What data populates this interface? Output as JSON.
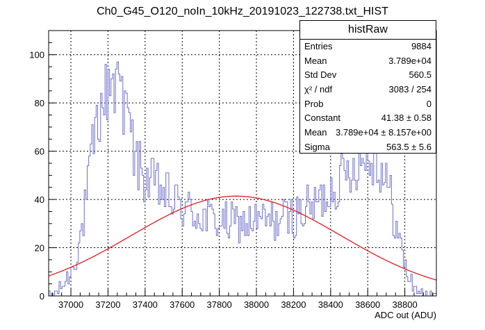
{
  "chart_data": {
    "type": "histogram",
    "title": "Ch0_G45_O120_noIn_10kHz_20191023_122738.txt_HIST",
    "xlabel": "ADC out (ADU)",
    "ylabel": "",
    "xlim": [
      36880,
      38970
    ],
    "ylim": [
      0,
      110
    ],
    "x_ticks": [
      37000,
      37200,
      37400,
      37600,
      37800,
      38000,
      38200,
      38400,
      38600,
      38800
    ],
    "y_ticks": [
      0,
      20,
      40,
      60,
      80,
      100
    ],
    "grid": true,
    "legend": "top-right",
    "colors": {
      "histogram": "#6e6ecc",
      "fit": "#e0191c",
      "axes": "#000000"
    },
    "histogram_profile": [
      [
        36890,
        0
      ],
      [
        36930,
        2
      ],
      [
        36970,
        6
      ],
      [
        37000,
        10
      ],
      [
        37030,
        17
      ],
      [
        37060,
        28
      ],
      [
        37080,
        37
      ],
      [
        37100,
        50
      ],
      [
        37120,
        62
      ],
      [
        37140,
        70
      ],
      [
        37160,
        76
      ],
      [
        37180,
        82
      ],
      [
        37200,
        86
      ],
      [
        37220,
        88
      ],
      [
        37240,
        87
      ],
      [
        37260,
        84
      ],
      [
        37280,
        80
      ],
      [
        37300,
        72
      ],
      [
        37320,
        66
      ],
      [
        37340,
        60
      ],
      [
        37360,
        55
      ],
      [
        37380,
        51
      ],
      [
        37400,
        49
      ],
      [
        37450,
        46
      ],
      [
        37500,
        43
      ],
      [
        37550,
        39
      ],
      [
        37600,
        37
      ],
      [
        37650,
        35
      ],
      [
        37700,
        33
      ],
      [
        37750,
        32
      ],
      [
        37800,
        31
      ],
      [
        37850,
        30
      ],
      [
        37900,
        30
      ],
      [
        37950,
        30
      ],
      [
        38000,
        31
      ],
      [
        38050,
        31
      ],
      [
        38100,
        31
      ],
      [
        38150,
        32
      ],
      [
        38200,
        33
      ],
      [
        38250,
        35
      ],
      [
        38300,
        37
      ],
      [
        38350,
        40
      ],
      [
        38400,
        44
      ],
      [
        38450,
        48
      ],
      [
        38500,
        52
      ],
      [
        38550,
        56
      ],
      [
        38600,
        58
      ],
      [
        38640,
        57
      ],
      [
        38680,
        52
      ],
      [
        38720,
        42
      ],
      [
        38750,
        30
      ],
      [
        38780,
        20
      ],
      [
        38810,
        10
      ],
      [
        38840,
        5
      ],
      [
        38870,
        2
      ],
      [
        38900,
        1
      ],
      [
        38930,
        0
      ]
    ],
    "fit": {
      "function": "gaus",
      "constant": 41.38,
      "mean": 37890,
      "sigma": 563.5
    },
    "stats": {
      "name": "histRaw",
      "rows": [
        {
          "label": "Entries",
          "value": "9884"
        },
        {
          "label": "Mean",
          "value": "3.789e+04"
        },
        {
          "label": "Std Dev",
          "value": "560.5"
        },
        {
          "label": "χ² / ndf",
          "value": "3083 / 254"
        },
        {
          "label": "Prob",
          "value": "0"
        },
        {
          "label": "Constant",
          "value": "41.38 ± 0.58"
        },
        {
          "label": "Mean",
          "value": "3.789e+04 ± 8.157e+00"
        },
        {
          "label": "Sigma",
          "value": "563.5 ± 5.6"
        }
      ]
    }
  }
}
